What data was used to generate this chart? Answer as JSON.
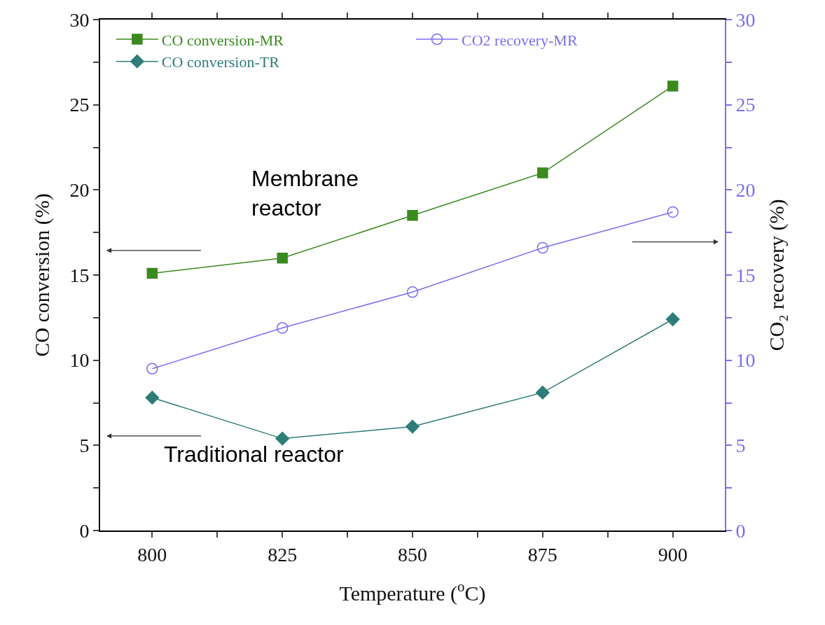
{
  "chart_data": {
    "type": "line",
    "xlabel": "Temperature ($^{o}$C)",
    "ylabel": "CO conversion (%)",
    "y2label": "CO₂ recovery (%)",
    "x": [
      800,
      825,
      850,
      875,
      900
    ],
    "series": [
      {
        "name": "CO conversion-MR",
        "color": "#3a8a1e",
        "marker": "square",
        "values": [
          15.1,
          16.0,
          18.5,
          21.0,
          26.1
        ]
      },
      {
        "name": "CO2 recovery-MR",
        "color": "#7a6ef0",
        "marker": "circle",
        "axis": "y2",
        "values": [
          9.5,
          11.9,
          14.0,
          16.6,
          18.7
        ]
      },
      {
        "name": "CO conversion-TR",
        "color": "#2e7d78",
        "marker": "diamond",
        "values": [
          7.8,
          5.4,
          6.1,
          8.1,
          12.4
        ]
      }
    ],
    "xlim": [
      790,
      910
    ],
    "xticks": [
      800,
      {
        "value": 812.5,
        "label": null
      },
      825,
      {
        "value": 837.5,
        "label": null
      },
      850,
      {
        "value": 862.5,
        "label": null
      },
      875,
      {
        "value": 887.5,
        "label": null
      },
      900
    ],
    "ylim": [
      0,
      30
    ],
    "yticks": [
      0,
      {
        "value": 2.5,
        "label": null
      },
      5,
      {
        "value": 7.5,
        "label": null
      },
      10,
      {
        "value": 12.5,
        "label": null
      },
      15,
      {
        "value": 17.5,
        "label": null
      },
      20,
      {
        "value": 22.5,
        "label": null
      },
      25,
      {
        "value": 27.5,
        "label": null
      },
      30
    ],
    "y2lim": [
      0,
      30
    ],
    "y2ticks": [
      0,
      {
        "value": 2.5,
        "label": null
      },
      5,
      {
        "value": 7.5,
        "label": null
      },
      10,
      {
        "value": 12.5,
        "label": null
      },
      15,
      {
        "value": 17.5,
        "label": null
      },
      20,
      {
        "value": 22.5,
        "label": null
      },
      25,
      {
        "value": 27.5,
        "label": null
      },
      30
    ],
    "annotations": [
      "Membrane\nreactor",
      "Traditional reactor"
    ],
    "legend": "top left"
  }
}
